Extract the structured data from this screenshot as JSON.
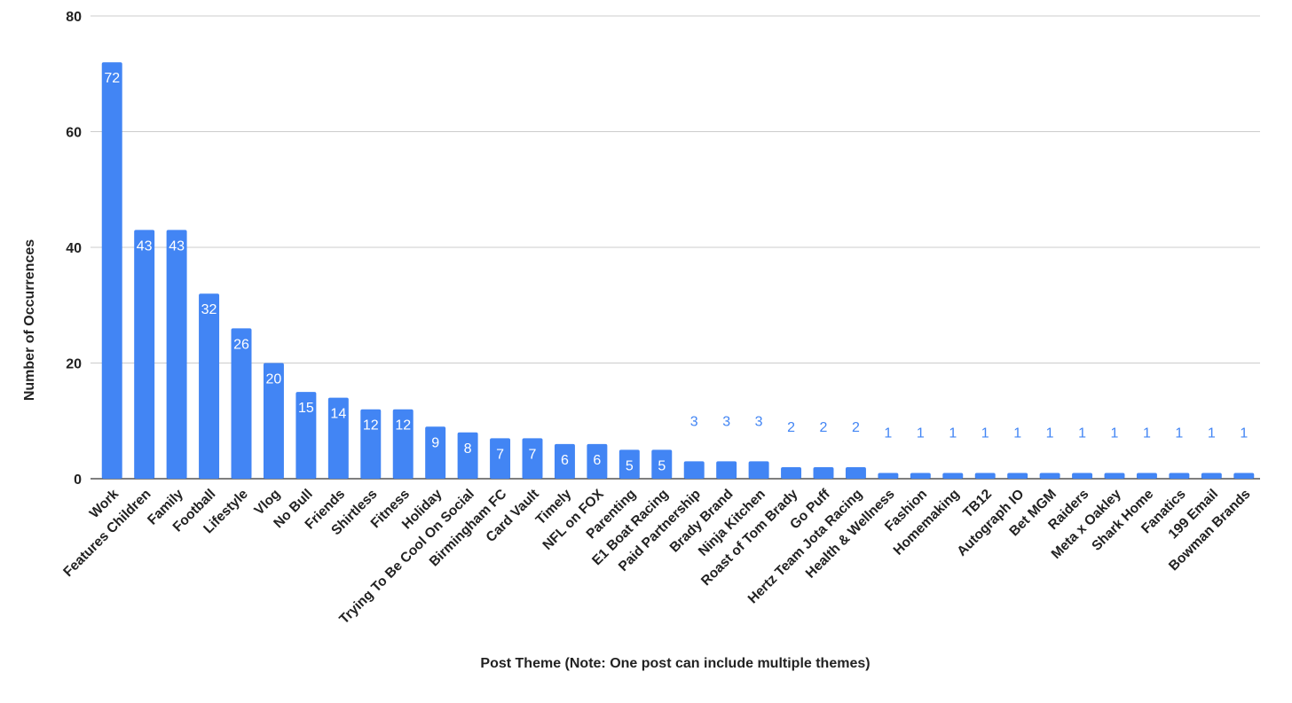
{
  "chart_data": {
    "type": "bar",
    "title": "",
    "xlabel": "Post Theme (Note: One post can include multiple themes)",
    "ylabel": "Number of Occurrences",
    "ylim": [
      0,
      80
    ],
    "yticks": [
      "0",
      "20",
      "40",
      "60",
      "80"
    ],
    "grid": true,
    "legend": "none",
    "bar_color": "#4285f4",
    "gridline_color": "#cccccc",
    "inside_label_color": "#ffffff",
    "outside_label_color": "#4285f4",
    "categories": [
      "Work",
      "Features Children",
      "Family",
      "Football",
      "Lifestyle",
      "Vlog",
      "No Bull",
      "Friends",
      "Shirtless",
      "Fitness",
      "Holiday",
      "Trying To Be Cool On Social",
      "Birmingham FC",
      "Card Vault",
      "Timely",
      "NFL on FOX",
      "Parenting",
      "E1 Boat Racing",
      "Paid Partnership",
      "Brady Brand",
      "Ninja Kitchen",
      "Roast of Tom Brady",
      "Go Puff",
      "Hertz Team Jota Racing",
      "Health & Wellness",
      "Fashion",
      "Homemaking",
      "TB12",
      "Autograph IO",
      "Bet MGM",
      "Raiders",
      "Meta x Oakley",
      "Shark Home",
      "Fanatics",
      "199 Email",
      "Bowman Brands"
    ],
    "values": [
      72,
      43,
      43,
      32,
      26,
      20,
      15,
      14,
      12,
      12,
      9,
      8,
      7,
      7,
      6,
      6,
      5,
      5,
      3,
      3,
      3,
      2,
      2,
      2,
      1,
      1,
      1,
      1,
      1,
      1,
      1,
      1,
      1,
      1,
      1,
      1
    ],
    "data_labels": [
      "72",
      "43",
      "43",
      "32",
      "26",
      "20",
      "15",
      "14",
      "12",
      "12",
      "9",
      "8",
      "7",
      "7",
      "6",
      "6",
      "5",
      "5",
      "3",
      "3",
      "3",
      "2",
      "2",
      "2",
      "1",
      "1",
      "1",
      "1",
      "1",
      "1",
      "1",
      "1",
      "1",
      "1",
      "1",
      "1"
    ]
  }
}
